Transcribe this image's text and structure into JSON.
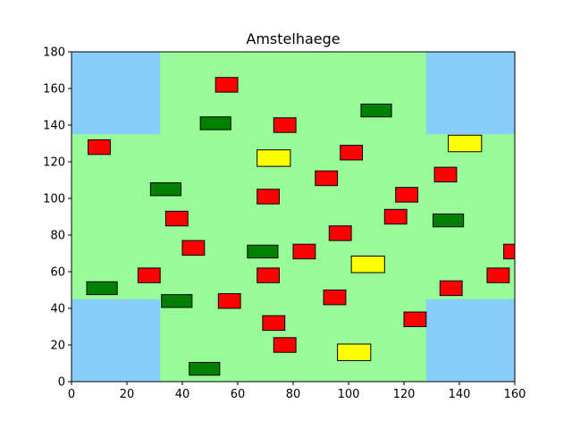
{
  "chart_data": {
    "type": "scatter",
    "title": "Amstelhaege",
    "xlabel": "",
    "ylabel": "",
    "xlim": [
      0,
      160
    ],
    "ylim": [
      0,
      180
    ],
    "xticks": [
      "0",
      "20",
      "40",
      "60",
      "80",
      "100",
      "120",
      "140",
      "160"
    ],
    "yticks": [
      "0",
      "20",
      "40",
      "60",
      "80",
      "100",
      "120",
      "140",
      "160",
      "180"
    ],
    "grid": false,
    "colors": {
      "background": "#98fb98",
      "water": "#87cefa",
      "red": "#ff0000",
      "green": "#008000",
      "yellow": "#ffff00",
      "edge": "#000000"
    },
    "water": [
      {
        "x": [
          0,
          32
        ],
        "y": [
          135,
          180
        ]
      },
      {
        "x": [
          128,
          160
        ],
        "y": [
          135,
          180
        ]
      },
      {
        "x": [
          0,
          32
        ],
        "y": [
          0,
          45
        ]
      },
      {
        "x": [
          128,
          160
        ],
        "y": [
          0,
          45
        ]
      }
    ],
    "series": [
      {
        "color": "red",
        "width": 8,
        "height": 8,
        "points": [
          [
            56,
            162
          ],
          [
            77,
            140
          ],
          [
            10,
            128
          ],
          [
            101,
            125
          ],
          [
            92,
            111
          ],
          [
            121,
            102
          ],
          [
            71,
            101
          ],
          [
            135,
            113
          ],
          [
            38,
            89
          ],
          [
            117,
            90
          ],
          [
            97,
            81
          ],
          [
            44,
            73
          ],
          [
            84,
            71
          ],
          [
            160,
            71
          ],
          [
            28,
            58
          ],
          [
            71,
            58
          ],
          [
            154,
            58
          ],
          [
            137,
            51
          ],
          [
            95,
            46
          ],
          [
            57,
            44
          ],
          [
            73,
            32
          ],
          [
            124,
            34
          ],
          [
            77,
            20
          ]
        ]
      },
      {
        "color": "green",
        "width": 11,
        "height": 7,
        "points": [
          [
            52,
            141
          ],
          [
            110,
            148
          ],
          [
            34,
            105
          ],
          [
            136,
            88
          ],
          [
            69,
            71
          ],
          [
            11,
            51
          ],
          [
            38,
            44
          ],
          [
            48,
            7
          ]
        ]
      },
      {
        "color": "yellow",
        "width": 12,
        "height": 9,
        "points": [
          [
            73,
            122
          ],
          [
            142,
            130
          ],
          [
            107,
            64
          ],
          [
            102,
            16
          ]
        ]
      }
    ]
  }
}
